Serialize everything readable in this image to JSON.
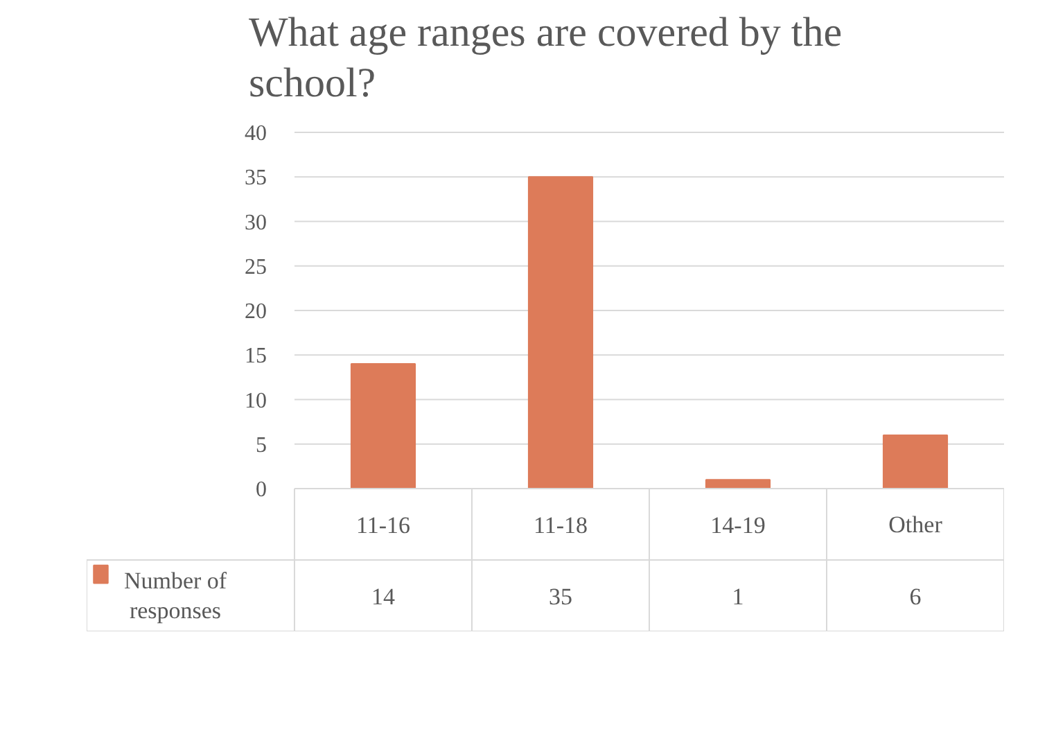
{
  "chart_data": {
    "type": "bar",
    "title": "What age ranges are covered by the school?",
    "categories": [
      "11-16",
      "11-18",
      "14-19",
      "Other"
    ],
    "series": [
      {
        "name": "Number of responses",
        "color": "#dd7b59",
        "values": [
          14,
          35,
          1,
          6
        ]
      }
    ],
    "ylim": [
      0,
      40
    ],
    "yticks": [
      0,
      5,
      10,
      15,
      20,
      25,
      30,
      35,
      40
    ],
    "grid": "y",
    "data_labels": true
  }
}
